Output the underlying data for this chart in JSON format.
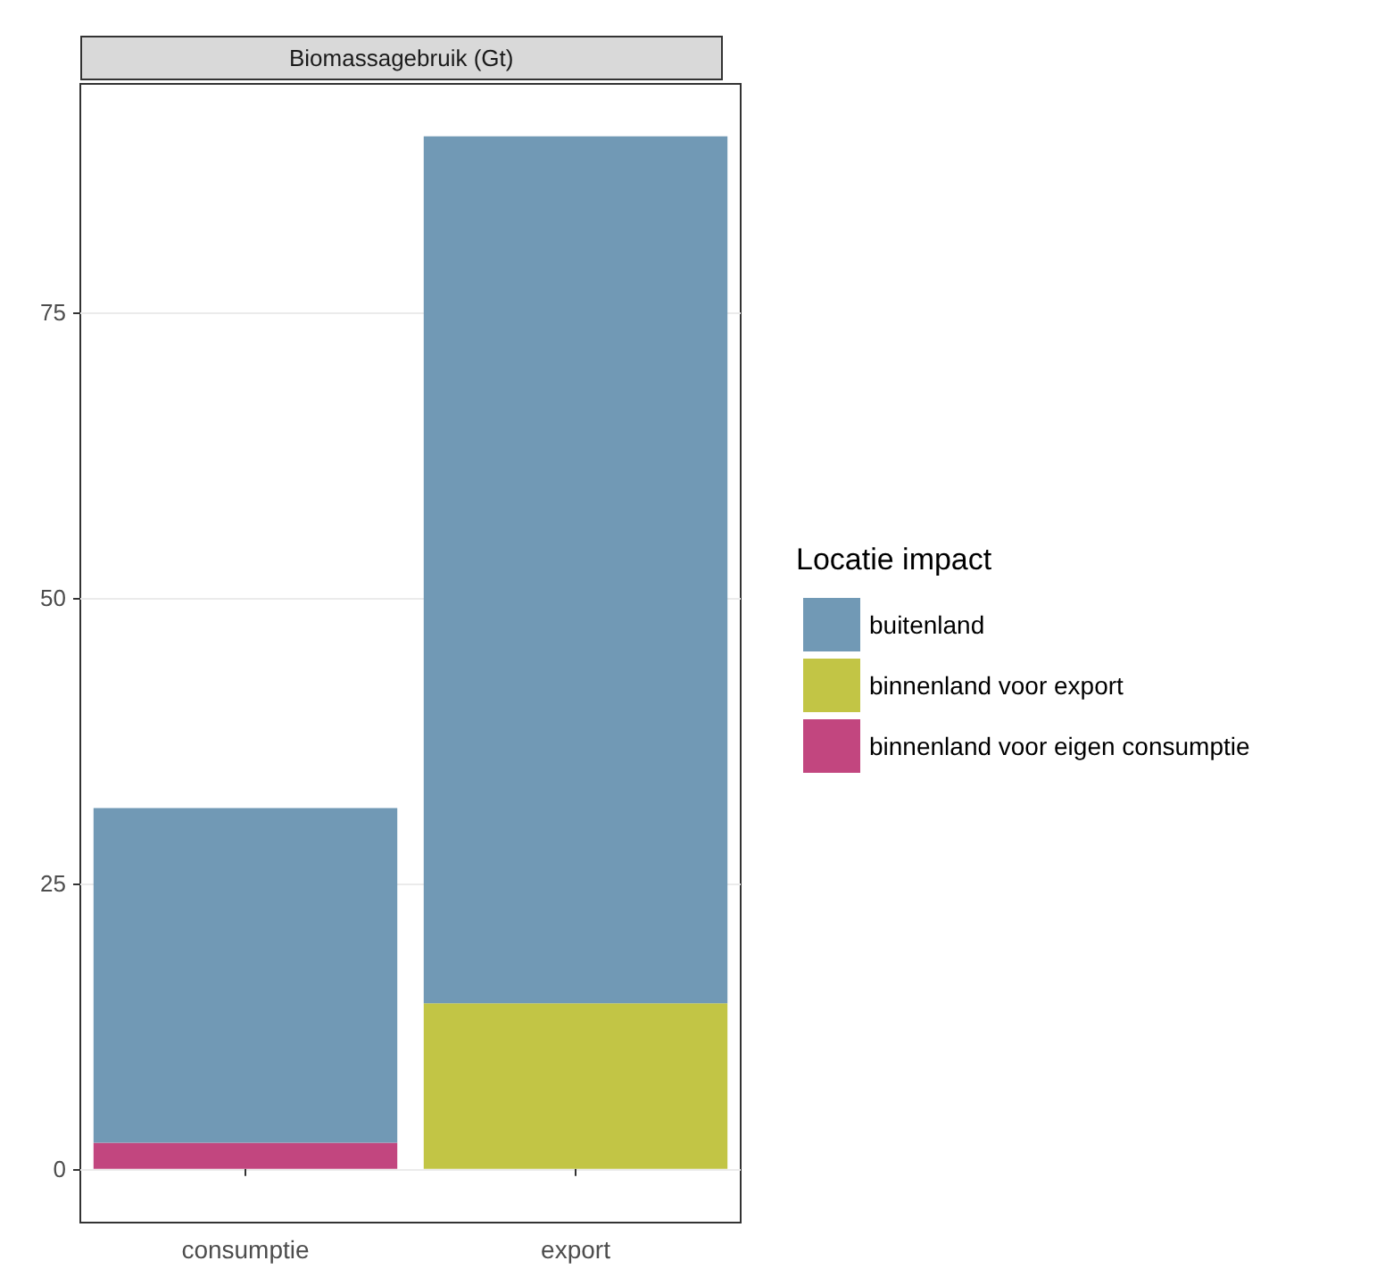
{
  "chart_data": {
    "type": "bar",
    "title": "Biomassagebruik (Gt)",
    "legend_title": "Locatie impact",
    "categories": [
      "consumptie",
      "export"
    ],
    "stacked": true,
    "series": [
      {
        "name": "binnenland voor eigen consumptie",
        "color": "#c2467f",
        "values": [
          2.3,
          null
        ]
      },
      {
        "name": "binnenland voor export",
        "color": "#c2c545",
        "values": [
          null,
          14.5
        ]
      },
      {
        "name": "buitenland",
        "color": "#7199b5",
        "values": [
          29.3,
          75.9
        ]
      }
    ],
    "ylim": [
      -4.7,
      95
    ],
    "yticks": [
      0,
      25,
      50,
      75
    ],
    "grid": true,
    "legend": "right"
  }
}
